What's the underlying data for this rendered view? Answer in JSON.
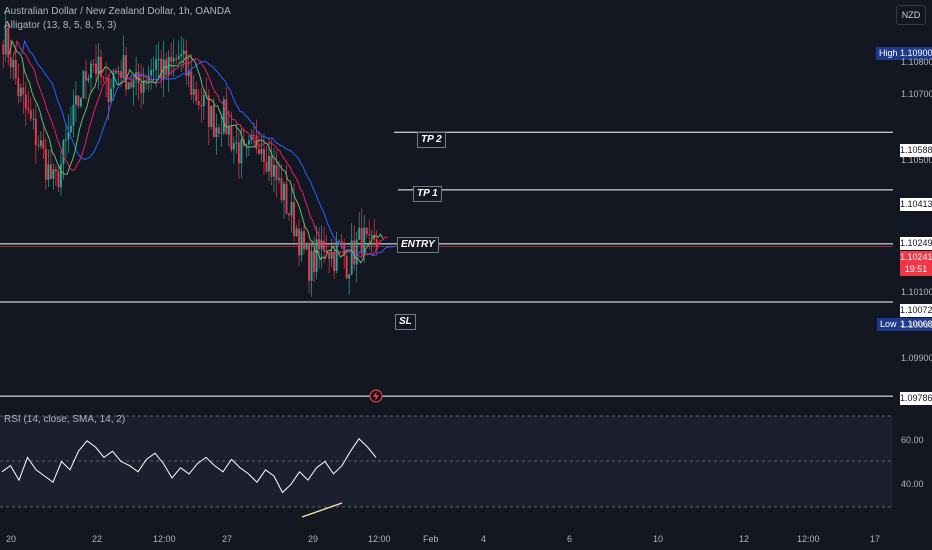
{
  "header": {
    "symbol": "Australian Dollar / New Zealand Dollar, 1h, OANDA",
    "indicator": "Alligator (13, 8, 5, 8, 5, 3)",
    "currency": "NZD"
  },
  "price_tags": {
    "high_label": "High",
    "high_value": "1.10900",
    "tp2": "1.10588",
    "tp1": "1.10413",
    "entry": "1.10249",
    "current": "1.10241",
    "countdown": "19:51",
    "sl": "1.10072",
    "low_label": "Low",
    "low_value": "1.10068",
    "bottom": "1.09786"
  },
  "annotations": {
    "tp2": "TP 2",
    "tp1": "TP 1",
    "entry": "ENTRY",
    "sl": "SL"
  },
  "rsi": {
    "label": "RSI (14, close, SMA, 14, 2)",
    "ticks": [
      "60.00",
      "40.00"
    ]
  },
  "colors": {
    "bg": "#131722",
    "up": "#26a69a",
    "down": "#f23645",
    "jaw": "#2962ff",
    "teeth": "#e91e63",
    "lips": "#66bb6a"
  },
  "chart_data": {
    "type": "candlestick",
    "ylim": [
      1.0975,
      1.1099
    ],
    "y_ticks": [
      1.108,
      1.107,
      1.105,
      1.101,
      1.1,
      1.099
    ],
    "x_ticks": [
      "20",
      "22",
      "12:00",
      "27",
      "29",
      "12:00",
      "Feb",
      "4",
      "6",
      "10",
      "12",
      "12:00",
      "17"
    ],
    "levels": [
      {
        "name": "TP 2",
        "value": 1.10588
      },
      {
        "name": "TP 1",
        "value": 1.10413
      },
      {
        "name": "ENTRY",
        "value": 1.10249
      },
      {
        "name": "SL",
        "value": 1.10072
      },
      {
        "name": "",
        "value": 1.09786
      }
    ],
    "close_path": [
      1.1088,
      1.1082,
      1.1072,
      1.1066,
      1.106,
      1.1055,
      1.1048,
      1.1042,
      1.105,
      1.1058,
      1.1066,
      1.1074,
      1.1082,
      1.1077,
      1.1071,
      1.1076,
      1.1079,
      1.1076,
      1.1072,
      1.1075,
      1.1078,
      1.1081,
      1.1076,
      1.1079,
      1.1082,
      1.1077,
      1.1071,
      1.1068,
      1.1065,
      1.1061,
      1.1064,
      1.1058,
      1.1054,
      1.105,
      1.1054,
      1.1058,
      1.1052,
      1.1046,
      1.1041,
      1.1035,
      1.103,
      1.1022,
      1.1018,
      1.1022,
      1.1026,
      1.1021,
      1.1024,
      1.1019,
      1.1023,
      1.1027,
      1.1022,
      1.1024
    ],
    "rsi_values": [
      45,
      48,
      41,
      52,
      46,
      43,
      40,
      50,
      46,
      55,
      60,
      57,
      52,
      55,
      50,
      48,
      45,
      51,
      54,
      49,
      42,
      47,
      44,
      49,
      52,
      48,
      45,
      51,
      47,
      44,
      40,
      46,
      43,
      35,
      39,
      45,
      41,
      47,
      50,
      44,
      48,
      55,
      61,
      57,
      52
    ],
    "rsi_ylim": [
      25,
      75
    ]
  }
}
